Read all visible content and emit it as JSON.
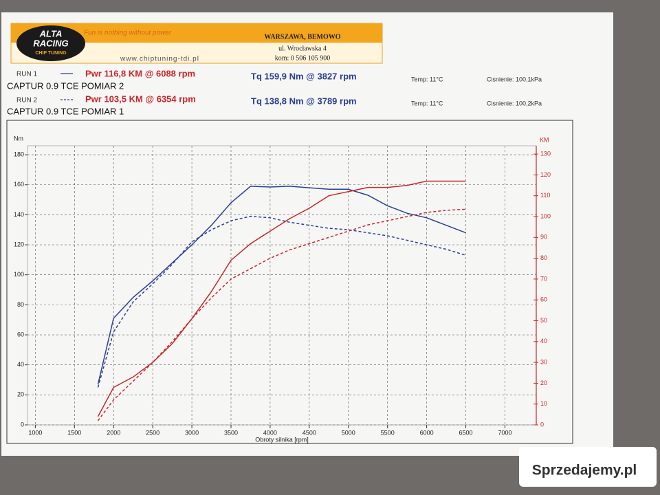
{
  "header": {
    "logo": [
      "ALTA",
      "RACING",
      "CHIP TUNING"
    ],
    "slogan": "Fun is nothing without power",
    "url": "www.chiptuning-tdi.pl",
    "address": [
      "WARSZAWA, BEMOWO",
      "ul. Wrocławska 4",
      "kom: 0 506 105 900"
    ]
  },
  "runs": [
    {
      "label": "RUN 1",
      "power": "Pwr 116,8 KM @ 6088 rpm",
      "torque": "Tq 159,9 Nm @ 3827 rpm",
      "temperature": "Temp: 11°C",
      "pressure": "Cisnienie: 100,1kPa",
      "vehicle": "CAPTUR 0.9 TCE POMIAR 2"
    },
    {
      "label": "RUN 2",
      "power": "Pwr 103,5 KM @ 6354 rpm",
      "torque": "Tq 138,8 Nm @ 3789 rpm",
      "temperature": "Temp: 11°C",
      "pressure": "Cisnienie: 100,2kPa",
      "vehicle": "CAPTUR 0.9 TCE POMIAR 1"
    }
  ],
  "watermark": "Sprzedajemy.pl",
  "chart_data": {
    "type": "line",
    "y_label": "Nm",
    "y2_label": "KM",
    "x_label": "Obroty silnika [rpm]",
    "x": [
      1800,
      2000,
      2250,
      2500,
      2750,
      3000,
      3250,
      3500,
      3750,
      4000,
      4250,
      4500,
      4750,
      5000,
      5250,
      5500,
      5750,
      6000,
      6250,
      6500
    ],
    "xlim": [
      900,
      7400
    ],
    "xticks": [
      1000,
      1500,
      2000,
      2500,
      3000,
      3500,
      4000,
      4500,
      5000,
      5500,
      6000,
      6500,
      7000
    ],
    "ylim": [
      0,
      186
    ],
    "yticks": [
      0,
      20,
      40,
      60,
      80,
      100,
      120,
      140,
      160,
      180
    ],
    "y2lim": [
      0,
      134
    ],
    "y2ticks": [
      0,
      10,
      20,
      30,
      40,
      50,
      60,
      70,
      80,
      90,
      100,
      110,
      120,
      130
    ],
    "grid": true,
    "series": [
      {
        "color": "#2b3f92",
        "line_style": "solid",
        "values": [
          27,
          71,
          85,
          96,
          108,
          120,
          133,
          148,
          159,
          158.5,
          159,
          158,
          157,
          157,
          153,
          146,
          141,
          138,
          133,
          128
        ]
      },
      {
        "color": "#2b3f92",
        "line_style": "dashed",
        "values": [
          25,
          62,
          82,
          94,
          107,
          122,
          130,
          136,
          139,
          138,
          135,
          133,
          131,
          130,
          128,
          126,
          123,
          120,
          117,
          113
        ]
      },
      {
        "color": "#c8262b",
        "line_style": "solid",
        "axis": "y2",
        "values": [
          4,
          18,
          23,
          30,
          39,
          51,
          64,
          79,
          87,
          93,
          99,
          104,
          110,
          112,
          114,
          114,
          115,
          117,
          117,
          117
        ]
      },
      {
        "color": "#c8262b",
        "line_style": "dashed",
        "axis": "y2",
        "values": [
          2,
          12,
          21,
          30,
          40,
          51,
          61,
          70,
          75,
          80,
          84,
          87,
          90,
          93,
          96,
          98,
          100,
          102,
          103,
          103.5
        ]
      }
    ]
  }
}
